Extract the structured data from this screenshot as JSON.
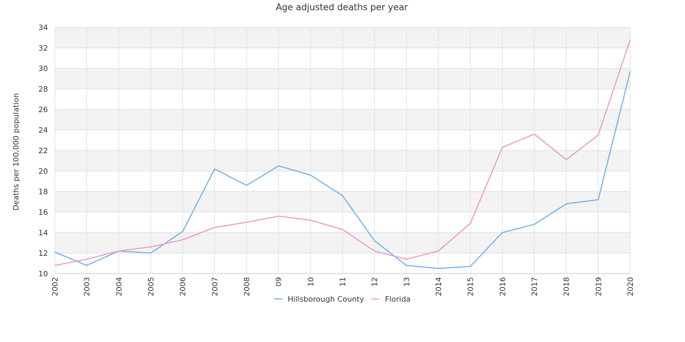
{
  "chart_data": {
    "type": "line",
    "title": "Age adjusted deaths per year",
    "xlabel": "",
    "ylabel": "Deaths per 100,000 population",
    "ylim": [
      10,
      34
    ],
    "yticks": [
      "10",
      "12",
      "14",
      "16",
      "18",
      "20",
      "22",
      "24",
      "26",
      "28",
      "30",
      "32",
      "34"
    ],
    "categories": [
      "2002",
      "2003",
      "2004",
      "2005",
      "2006",
      "2007",
      "2008",
      "09",
      "10",
      "11",
      "12",
      "13",
      "2014",
      "2015",
      "2016",
      "2017",
      "2018",
      "2019",
      "2020"
    ],
    "grid": true,
    "legend_position": "bottom",
    "series": [
      {
        "name": "Hillsborough County",
        "color": "#6aaee8",
        "values": [
          12.1,
          10.8,
          12.2,
          12.0,
          14.1,
          20.2,
          18.6,
          20.5,
          19.6,
          17.6,
          13.2,
          10.8,
          10.5,
          10.7,
          14.0,
          14.8,
          16.8,
          17.2,
          29.7
        ]
      },
      {
        "name": "Florida",
        "color": "#ef94c8",
        "values": [
          10.8,
          11.4,
          12.2,
          12.6,
          13.3,
          14.5,
          15.0,
          15.6,
          15.2,
          14.3,
          12.2,
          11.4,
          12.2,
          14.9,
          22.3,
          23.6,
          21.1,
          23.5,
          32.8
        ]
      }
    ]
  }
}
